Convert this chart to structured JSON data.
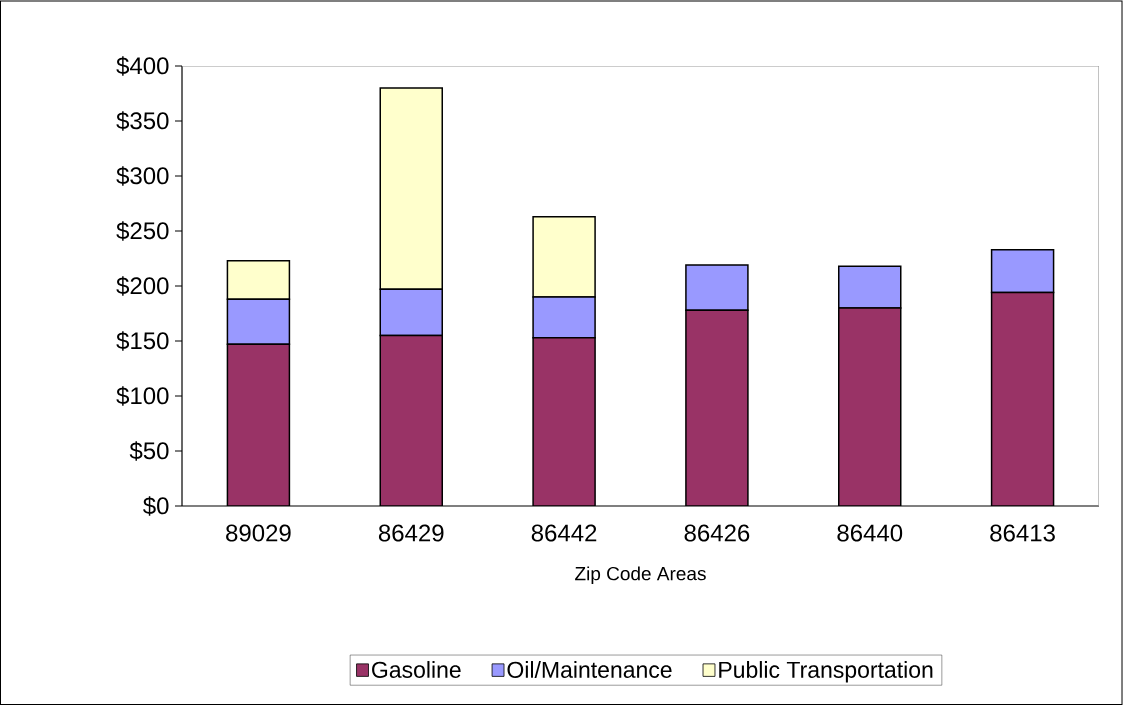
{
  "chart_data": {
    "type": "bar",
    "stacked": true,
    "xlabel": "Zip Code Areas",
    "categories": [
      "89029",
      "86429",
      "86442",
      "86426",
      "86440",
      "86413"
    ],
    "series": [
      {
        "name": "Gasoline",
        "color": "#993366",
        "values": [
          147,
          155,
          153,
          178,
          180,
          194
        ]
      },
      {
        "name": "Oil/Maintenance",
        "color": "#9999ff",
        "values": [
          41,
          42,
          37,
          41,
          38,
          39
        ]
      },
      {
        "name": "Public Transportation",
        "color": "#ffffcc",
        "values": [
          35,
          183,
          73,
          null,
          null,
          null
        ]
      }
    ],
    "ylim": [
      0,
      400
    ],
    "yticks": [
      {
        "value": 0,
        "label": "$0"
      },
      {
        "value": 50,
        "label": "$50"
      },
      {
        "value": 100,
        "label": "$100"
      },
      {
        "value": 150,
        "label": "$150"
      },
      {
        "value": 200,
        "label": "$200"
      },
      {
        "value": 250,
        "label": "$250"
      },
      {
        "value": 300,
        "label": "$300"
      },
      {
        "value": 350,
        "label": "$350"
      },
      {
        "value": 400,
        "label": "$400"
      }
    ],
    "grid": false,
    "legend": "bottom"
  }
}
